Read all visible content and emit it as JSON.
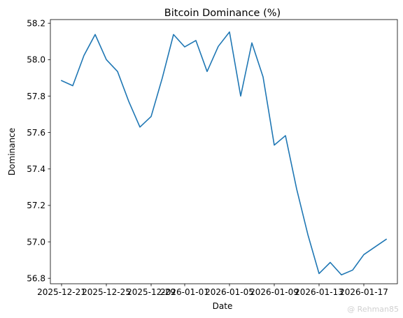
{
  "chart_data": {
    "type": "line",
    "title": "Bitcoin Dominance (%)",
    "xlabel": "Date",
    "ylabel": "Dominance",
    "ylim": [
      56.77,
      58.22
    ],
    "xlim": [
      "2025-12-20",
      "2026-01-20"
    ],
    "yticks": [
      56.8,
      57.0,
      57.2,
      57.4,
      57.6,
      57.8,
      58.0,
      58.2
    ],
    "ytick_labels": [
      "56.8",
      "57.0",
      "57.2",
      "57.4",
      "57.6",
      "57.8",
      "58.0",
      "58.2"
    ],
    "xticks": [
      "2025-12-21",
      "2025-12-25",
      "2025-12-29",
      "2026-01-01",
      "2026-01-05",
      "2026-01-09",
      "2026-01-13",
      "2026-01-17"
    ],
    "xtick_labels": [
      "2025-12-21",
      "2025-12-25",
      "2025-12-29",
      "2026-01-01",
      "2026-01-05",
      "2026-01-09",
      "2026-01-13",
      "2026-01-17"
    ],
    "grid": false,
    "line_color": "#1f77b4",
    "series": [
      {
        "x": [
          "2025-12-21",
          "2025-12-22",
          "2025-12-23",
          "2025-12-24",
          "2025-12-25",
          "2025-12-26",
          "2025-12-27",
          "2025-12-28",
          "2025-12-29",
          "2025-12-30",
          "2025-12-31",
          "2026-01-01",
          "2026-01-02",
          "2026-01-03",
          "2026-01-04",
          "2026-01-05",
          "2026-01-06",
          "2026-01-07",
          "2026-01-08",
          "2026-01-09",
          "2026-01-10",
          "2026-01-11",
          "2026-01-12",
          "2026-01-13",
          "2026-01-14",
          "2026-01-15",
          "2026-01-16",
          "2026-01-17",
          "2026-01-18",
          "2026-01-19"
        ],
        "values": [
          57.885,
          57.857,
          58.023,
          58.138,
          58.0,
          57.935,
          57.771,
          57.63,
          57.688,
          57.9,
          58.138,
          58.07,
          58.105,
          57.935,
          58.073,
          58.152,
          57.8,
          58.092,
          57.905,
          57.531,
          57.583,
          57.29,
          57.04,
          56.826,
          56.887,
          56.819,
          56.845,
          56.93,
          56.972,
          57.014
        ]
      }
    ]
  },
  "watermark": "@ Rehman85"
}
